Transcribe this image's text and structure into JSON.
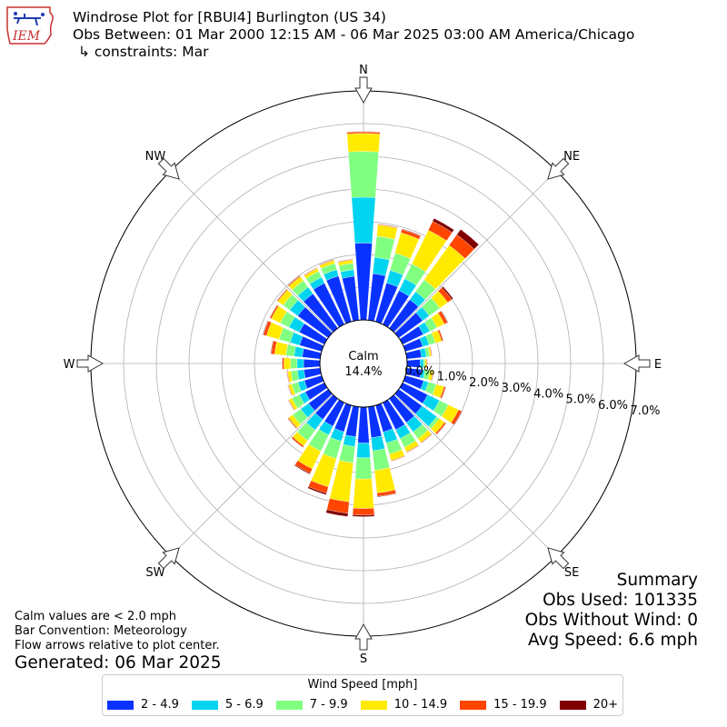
{
  "title": {
    "line1": "Windrose Plot for [RBUI4] Burlington (US 34)",
    "line2": "Obs Between: 01 Mar 2000 12:15 AM - 06 Mar 2025 03:00 AM America/Chicago",
    "line3": "↳ constraints: Mar"
  },
  "logo": {
    "text": "IEM"
  },
  "summary": {
    "heading": "Summary",
    "obs_used": "Obs Used: 101335",
    "obs_without_wind": "Obs Without Wind: 0",
    "avg_speed": "Avg Speed: 6.6 mph"
  },
  "notes": {
    "calm_note": "Calm values are < 2.0 mph",
    "bar_convention": "Bar Convention: Meteorology",
    "flow_arrows": "Flow arrows relative to plot center."
  },
  "generated": "Generated: 06 Mar 2025",
  "legend": {
    "title": "Wind Speed [mph]",
    "items": [
      {
        "label": "2 - 4.9",
        "color": "#0a32ff"
      },
      {
        "label": "5 - 6.9",
        "color": "#00d4f0"
      },
      {
        "label": "7 - 9.9",
        "color": "#80ff80"
      },
      {
        "label": "10 - 14.9",
        "color": "#ffea00"
      },
      {
        "label": "15 - 19.9",
        "color": "#ff4500"
      },
      {
        "label": "20+",
        "color": "#800000"
      }
    ]
  },
  "chart_data": {
    "type": "windrose",
    "calm_label": "Calm",
    "calm_value": "14.4%",
    "directions": [
      "N",
      "NE",
      "E",
      "SE",
      "S",
      "SW",
      "W",
      "NW"
    ],
    "radial_tick_labels": [
      "0.0%",
      "1.0%",
      "2.0%",
      "3.0%",
      "4.0%",
      "5.0%",
      "6.0%",
      "7.0%"
    ],
    "rlim": [
      0,
      7.0
    ],
    "grid": true,
    "bin_width_degrees": 10,
    "bin_centers_degrees": [
      0,
      10,
      20,
      30,
      40,
      50,
      60,
      70,
      80,
      90,
      100,
      110,
      120,
      130,
      140,
      150,
      160,
      170,
      180,
      190,
      200,
      210,
      220,
      230,
      240,
      250,
      260,
      270,
      280,
      290,
      300,
      310,
      320,
      330,
      340,
      350
    ],
    "series": [
      {
        "name": "2 - 4.9",
        "color": "#0a32ff",
        "values": [
          2.35,
          1.43,
          1.23,
          1.15,
          1.08,
          0.9,
          0.7,
          0.55,
          0.45,
          0.4,
          0.45,
          0.58,
          0.85,
          0.88,
          0.9,
          0.92,
          0.85,
          0.95,
          1.1,
          0.92,
          0.84,
          0.8,
          0.78,
          0.74,
          0.65,
          0.55,
          0.5,
          0.5,
          0.55,
          0.7,
          0.85,
          1.15,
          1.3,
          1.4,
          1.45,
          1.35
        ]
      },
      {
        "name": "5 - 6.9",
        "color": "#00d4f0",
        "values": [
          1.4,
          0.5,
          0.4,
          0.4,
          0.3,
          0.25,
          0.22,
          0.2,
          0.15,
          0.1,
          0.1,
          0.15,
          0.4,
          0.55,
          0.35,
          0.3,
          0.35,
          0.4,
          0.45,
          0.3,
          0.3,
          0.3,
          0.4,
          0.3,
          0.2,
          0.2,
          0.2,
          0.2,
          0.25,
          0.3,
          0.35,
          0.3,
          0.25,
          0.2,
          0.2,
          0.2
        ]
      },
      {
        "name": "7 - 9.9",
        "color": "#80ff80",
        "values": [
          1.4,
          0.65,
          0.55,
          0.5,
          0.45,
          0.4,
          0.25,
          0.2,
          0.1,
          0.05,
          0.15,
          0.25,
          0.3,
          0.1,
          0.25,
          0.3,
          0.35,
          0.6,
          0.65,
          0.5,
          0.55,
          0.55,
          0.4,
          0.3,
          0.25,
          0.2,
          0.2,
          0.2,
          0.25,
          0.35,
          0.3,
          0.25,
          0.25,
          0.2,
          0.2,
          0.2
        ]
      },
      {
        "name": "10 - 14.9",
        "color": "#ffea00",
        "values": [
          0.55,
          0.35,
          0.65,
          1.15,
          1.3,
          0.3,
          0.25,
          0.2,
          0.05,
          0.05,
          0.1,
          0.25,
          0.35,
          0.2,
          0.15,
          0.15,
          0.2,
          0.7,
          0.9,
          1.2,
          0.9,
          0.6,
          0.2,
          0.15,
          0.1,
          0.1,
          0.1,
          0.2,
          0.35,
          0.4,
          0.3,
          0.2,
          0.15,
          0.1,
          0.1,
          0.1
        ]
      },
      {
        "name": "15 - 19.9",
        "color": "#ff4500",
        "values": [
          0.05,
          0.02,
          0.1,
          0.3,
          0.4,
          0.15,
          0.1,
          0.05,
          0.02,
          0.02,
          0.02,
          0.05,
          0.1,
          0.05,
          0.02,
          0.02,
          0.02,
          0.1,
          0.2,
          0.35,
          0.2,
          0.15,
          0.05,
          0.03,
          0.02,
          0.02,
          0.02,
          0.05,
          0.1,
          0.1,
          0.05,
          0.03,
          0.03,
          0.02,
          0.02,
          0.02
        ]
      },
      {
        "name": "20+",
        "color": "#800000",
        "values": [
          0.01,
          0.01,
          0.02,
          0.1,
          0.2,
          0.05,
          0.02,
          0.01,
          0.01,
          0.01,
          0.01,
          0.01,
          0.02,
          0.01,
          0.01,
          0.01,
          0.01,
          0.02,
          0.05,
          0.1,
          0.05,
          0.03,
          0.01,
          0.01,
          0.01,
          0.01,
          0.01,
          0.01,
          0.02,
          0.02,
          0.01,
          0.01,
          0.01,
          0.01,
          0.01,
          0.01
        ]
      }
    ]
  }
}
